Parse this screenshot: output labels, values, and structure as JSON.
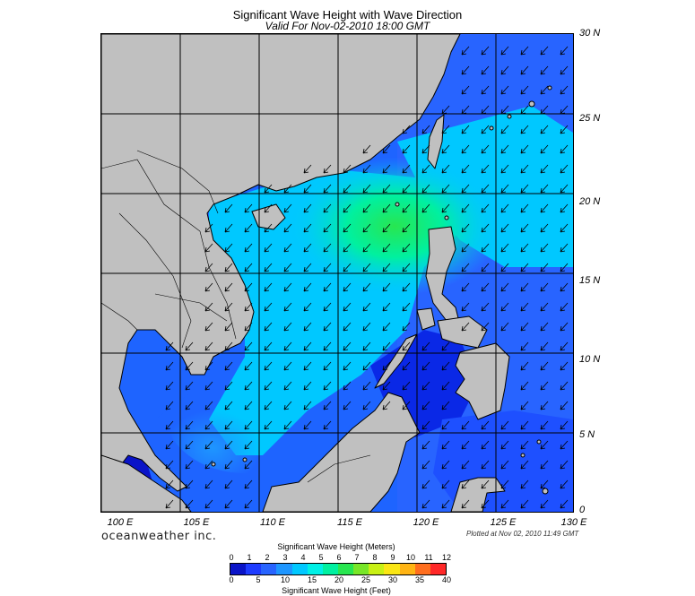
{
  "title": "Significant Wave Height with Wave Direction",
  "subtitle": "Valid For Nov-02-2010 18:00 GMT",
  "lat_labels": [
    "30 N",
    "25 N",
    "20 N",
    "15 N",
    "10 N",
    "5 N",
    "0"
  ],
  "lon_labels": [
    "100 E",
    "105 E",
    "110 E",
    "115 E",
    "120 E",
    "125 E",
    "130 E"
  ],
  "brand": "oceanweather inc.",
  "plotted": "Plotted at Nov 02, 2010 11:49 GMT",
  "legend": {
    "meters_title": "Significant Wave Height (Meters)",
    "feet_title": "Significant Wave Height (Feet)",
    "meters_ticks": [
      "0",
      "1",
      "2",
      "3",
      "4",
      "5",
      "6",
      "7",
      "8",
      "9",
      "10",
      "11",
      "12"
    ],
    "feet_ticks": [
      "0",
      "5",
      "10",
      "15",
      "20",
      "25",
      "30",
      "35",
      "40"
    ],
    "colors": [
      "#0a14c8",
      "#1e3cff",
      "#2864ff",
      "#1e96ff",
      "#00c8ff",
      "#00f0e6",
      "#00f0a0",
      "#28e650",
      "#78e628",
      "#c8f014",
      "#fae614",
      "#ffb414",
      "#ff6e1e",
      "#ff2828"
    ]
  },
  "colors": {
    "land": "#c0c0c0",
    "coast": "#000000",
    "grid": "#000000"
  }
}
